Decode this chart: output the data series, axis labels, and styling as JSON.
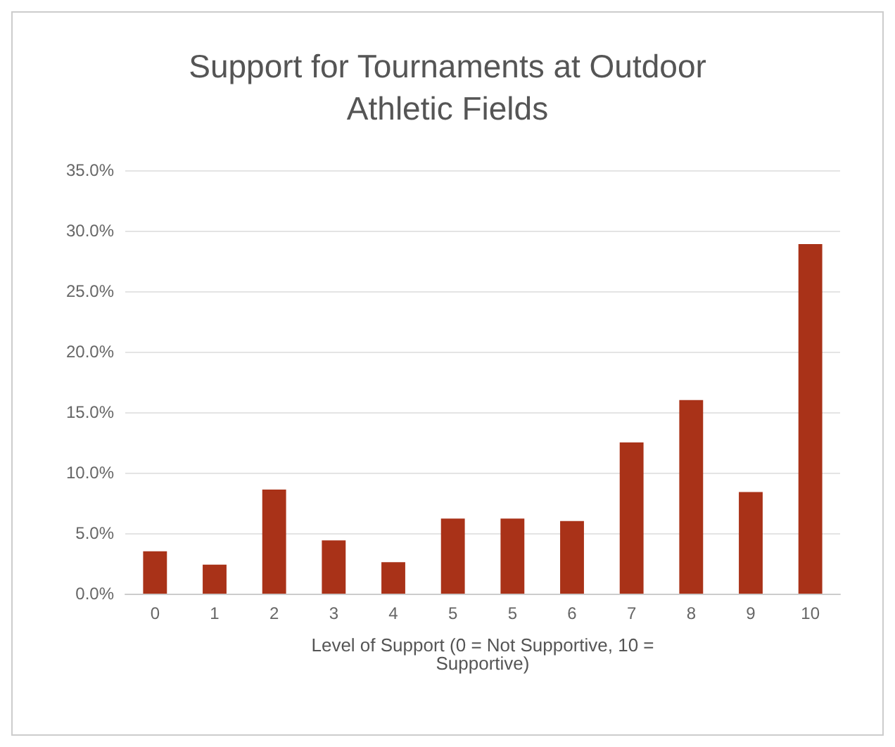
{
  "chart_data": {
    "type": "bar",
    "title": "Support for Tournaments at Outdoor Athletic Fields",
    "xlabel": "Level of Support (0 = Not Supportive, 10 = Supportive)",
    "categories": [
      "0",
      "1",
      "2",
      "3",
      "4",
      "5",
      "5",
      "6",
      "7",
      "8",
      "9",
      "10"
    ],
    "values": [
      3.5,
      2.4,
      8.6,
      4.4,
      2.6,
      6.2,
      6.2,
      6.0,
      12.5,
      16.0,
      8.4,
      28.9
    ],
    "color": "#a93218",
    "ylim": [
      0,
      35
    ],
    "yticks": [
      {
        "value": 0,
        "label": "0.0%"
      },
      {
        "value": 5,
        "label": "5.0%"
      },
      {
        "value": 10,
        "label": "10.0%"
      },
      {
        "value": 15,
        "label": "15.0%"
      },
      {
        "value": 20,
        "label": "20.0%"
      },
      {
        "value": 25,
        "label": "25.0%"
      },
      {
        "value": 30,
        "label": "30.0%"
      },
      {
        "value": 35,
        "label": "35.0%"
      }
    ],
    "grid": true
  }
}
